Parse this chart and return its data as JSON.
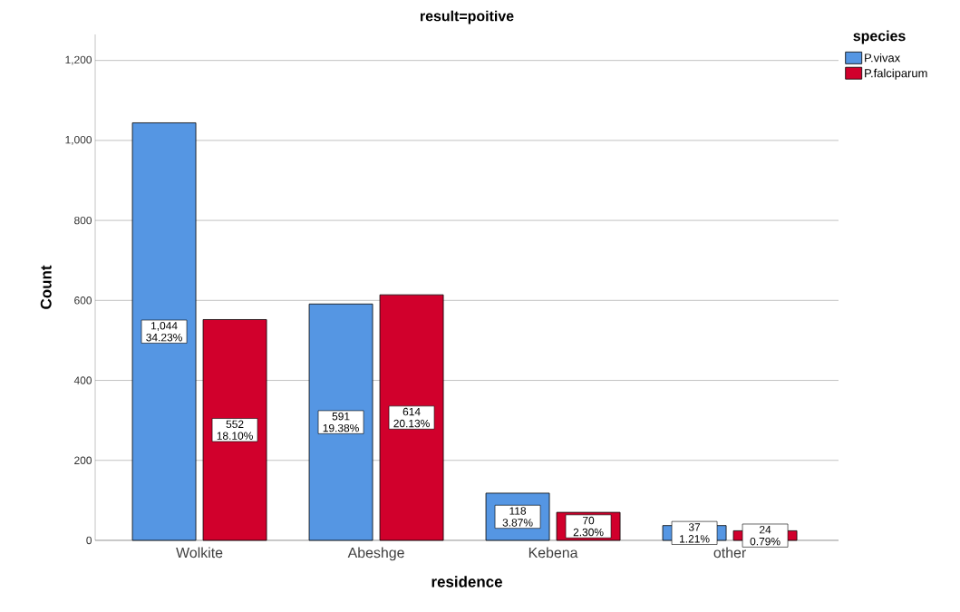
{
  "chart_data": {
    "type": "bar",
    "title": "result=poitive",
    "xlabel": "residence",
    "ylabel": "Count",
    "legend_title": "species",
    "categories": [
      "Wolkite",
      "Abeshge",
      "Kebena",
      "other"
    ],
    "series": [
      {
        "name": "P.vivax",
        "color": "#5596e3",
        "values": [
          1044,
          591,
          118,
          37
        ],
        "value_labels": [
          "1,044 34.23%",
          "591 19.38%",
          "118 3.87%",
          "37 1.21%"
        ]
      },
      {
        "name": "P.falciparum",
        "color": "#d1002c",
        "values": [
          552,
          614,
          70,
          24
        ],
        "value_labels": [
          "552 18.10%",
          "614 20.13%",
          "70 2.30%",
          "24 0.79%"
        ]
      }
    ],
    "ylim": [
      0,
      1265
    ],
    "yticks": [
      0,
      200,
      400,
      600,
      800,
      {
        "value": 1000,
        "label": "1,000"
      },
      {
        "value": 1200,
        "label": "1,200"
      }
    ],
    "grid": "y",
    "legend": "top right"
  }
}
